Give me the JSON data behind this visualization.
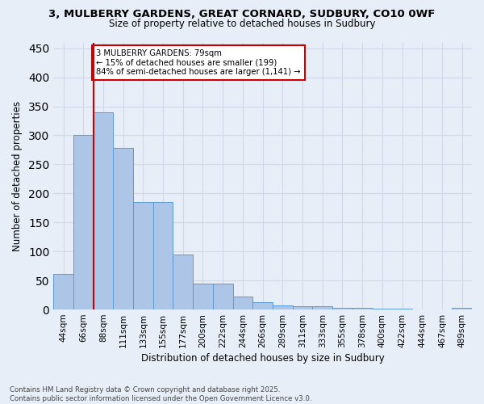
{
  "title": "3, MULBERRY GARDENS, GREAT CORNARD, SUDBURY, CO10 0WF",
  "subtitle": "Size of property relative to detached houses in Sudbury",
  "xlabel": "Distribution of detached houses by size in Sudbury",
  "ylabel": "Number of detached properties",
  "categories": [
    "44sqm",
    "66sqm",
    "88sqm",
    "111sqm",
    "133sqm",
    "155sqm",
    "177sqm",
    "200sqm",
    "222sqm",
    "244sqm",
    "266sqm",
    "289sqm",
    "311sqm",
    "333sqm",
    "355sqm",
    "378sqm",
    "400sqm",
    "422sqm",
    "444sqm",
    "467sqm",
    "489sqm"
  ],
  "values": [
    62,
    301,
    340,
    278,
    185,
    185,
    95,
    45,
    45,
    22,
    12,
    7,
    5,
    5,
    3,
    3,
    2,
    1,
    0,
    0,
    3
  ],
  "bar_color": "#adc6e8",
  "bar_edge_color": "#5b9bd5",
  "background_color": "#e8eef8",
  "grid_color": "#d0d8ea",
  "vline_color": "#cc0000",
  "vline_pos": 1.5,
  "annotation_text": "3 MULBERRY GARDENS: 79sqm\n← 15% of detached houses are smaller (199)\n84% of semi-detached houses are larger (1,141) →",
  "annotation_box_color": "#ffffff",
  "annotation_box_edge": "#cc0000",
  "ylim": [
    0,
    460
  ],
  "yticks": [
    0,
    50,
    100,
    150,
    200,
    250,
    300,
    350,
    400,
    450
  ],
  "footer": "Contains HM Land Registry data © Crown copyright and database right 2025.\nContains public sector information licensed under the Open Government Licence v3.0.",
  "figsize": [
    6.0,
    5.0
  ],
  "dpi": 100
}
